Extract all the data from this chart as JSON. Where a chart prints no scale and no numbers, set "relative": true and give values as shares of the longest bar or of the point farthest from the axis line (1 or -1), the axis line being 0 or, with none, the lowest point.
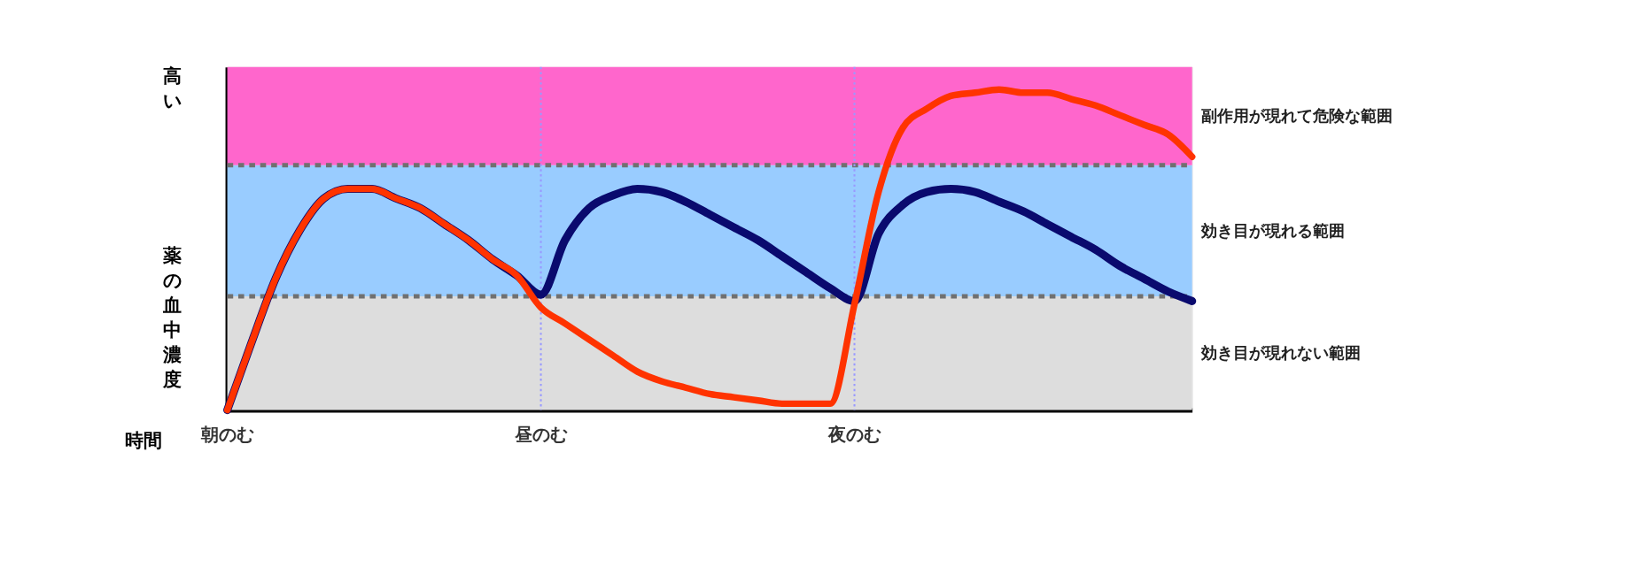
{
  "chart_data": {
    "type": "line",
    "relative": true,
    "xlabel": "時間",
    "ylabel": "薬の血中濃度",
    "annotations": [
      "高い"
    ],
    "categories": [
      "朝のむ",
      null,
      null,
      null,
      null,
      null,
      null,
      null,
      null,
      null,
      null,
      null,
      null,
      "昼のむ",
      null,
      null,
      null,
      null,
      null,
      null,
      null,
      null,
      null,
      null,
      null,
      null,
      "夜のむ",
      null,
      null,
      null,
      null,
      null,
      null,
      null,
      null,
      null,
      null,
      null,
      null,
      null,
      null
    ],
    "series": [
      {
        "color": "#0a0a6e",
        "values": [
          0,
          0.21,
          0.41,
          0.56,
          0.66,
          0.69,
          0.69,
          0.66,
          0.63,
          0.58,
          0.53,
          0.47,
          0.42,
          0.36,
          0.53,
          0.63,
          0.67,
          0.69,
          0.68,
          0.65,
          0.61,
          0.57,
          0.53,
          0.48,
          0.43,
          0.38,
          0.34,
          0.55,
          0.64,
          0.68,
          0.69,
          0.68,
          0.65,
          0.62,
          0.58,
          0.54,
          0.5,
          0.45,
          0.41,
          0.37,
          0.34
        ]
      },
      {
        "color": "#ff3300",
        "values": [
          0,
          0.21,
          0.41,
          0.56,
          0.66,
          0.69,
          0.69,
          0.66,
          0.63,
          0.58,
          0.53,
          0.47,
          0.42,
          0.32,
          0.27,
          0.22,
          0.17,
          0.12,
          0.09,
          0.07,
          0.05,
          0.04,
          0.03,
          0.02,
          0.02,
          0.02,
          0.33,
          0.68,
          0.88,
          0.94,
          0.98,
          0.99,
          1,
          0.99,
          0.99,
          0.97,
          0.95,
          0.92,
          0.89,
          0.86,
          0.79
        ]
      }
    ],
    "bands": [
      {
        "axis": "y",
        "from": 0,
        "to": 0.355,
        "label": "効き目が現れない範囲",
        "color": "#dddddd"
      },
      {
        "axis": "y",
        "from": 0.355,
        "to": 0.764,
        "label": "効き目が現れる範囲",
        "color": "#99ccff"
      },
      {
        "axis": "y",
        "from": 0.764,
        "to": 1.07,
        "label": "副作用が現れて危険な範囲",
        "color": "#ff66cc"
      }
    ],
    "ref_lines": [
      {
        "axis": "y",
        "value": 0.355,
        "color": "#707070",
        "line_style": "dashed"
      },
      {
        "axis": "y",
        "value": 0.764,
        "color": "#707070",
        "line_style": "dashed"
      },
      {
        "axis": "x",
        "value": "昼のむ",
        "color": "#9999ff",
        "line_style": "dotted"
      },
      {
        "axis": "x",
        "value": "夜のむ",
        "color": "#9999ff",
        "line_style": "dotted"
      }
    ]
  }
}
